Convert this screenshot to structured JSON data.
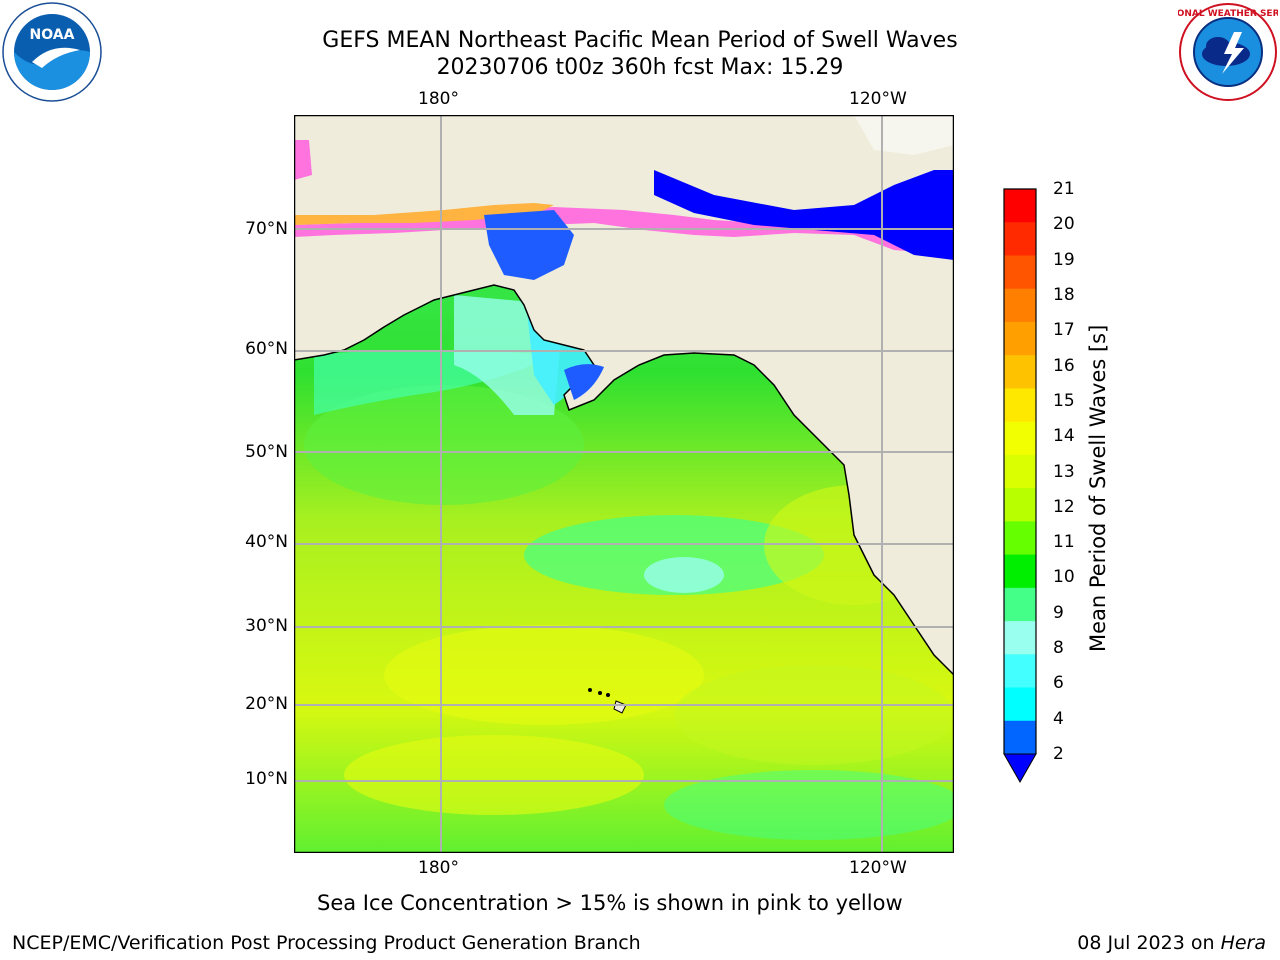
{
  "header": {
    "title_line1": "GEFS MEAN Northeast Pacific Mean Period of Swell Waves",
    "title_line2": "20230706 t00z 360h fcst   Max: 15.29"
  },
  "logos": {
    "left_text": "NOAA",
    "left_ring_text": "NATIONAL OCEANIC AND ATMOSPHERIC ADMINISTRATION · U.S. DEPARTMENT OF COMMERCE",
    "right_ring_text": "NATIONAL WEATHER SERVICE"
  },
  "map": {
    "top_lon_labels": [
      "180°",
      "120°W"
    ],
    "bottom_lon_labels": [
      "180°",
      "120°W"
    ],
    "lat_labels": [
      "70°N",
      "60°N",
      "50°N",
      "40°N",
      "30°N",
      "20°N",
      "10°N"
    ],
    "land_color": "#efecdc",
    "grid_color": "#b0b0b0"
  },
  "colorbar": {
    "title": "Mean Period of Swell Waves [s]",
    "ticks": [
      "21",
      "20",
      "19",
      "18",
      "17",
      "16",
      "15",
      "14",
      "13",
      "12",
      "11",
      "10",
      "9",
      "8",
      "6",
      "4",
      "2"
    ],
    "colors": [
      "#ff0000",
      "#ff2a00",
      "#ff5500",
      "#ff7f00",
      "#ffa000",
      "#ffc200",
      "#ffe800",
      "#f2ff00",
      "#d9ff00",
      "#b8ff00",
      "#66ff00",
      "#00ee00",
      "#44ff88",
      "#99ffee",
      "#44ffff",
      "#00ffff",
      "#0066ff"
    ],
    "under_color": "#0000ff"
  },
  "footer": {
    "note": "Sea Ice Concentration > 15% is shown in pink to yellow",
    "left": "NCEP/EMC/Verification Post Processing Product Generation Branch",
    "right_prefix": "08 Jul 2023 on ",
    "right_italic": "Hera"
  }
}
